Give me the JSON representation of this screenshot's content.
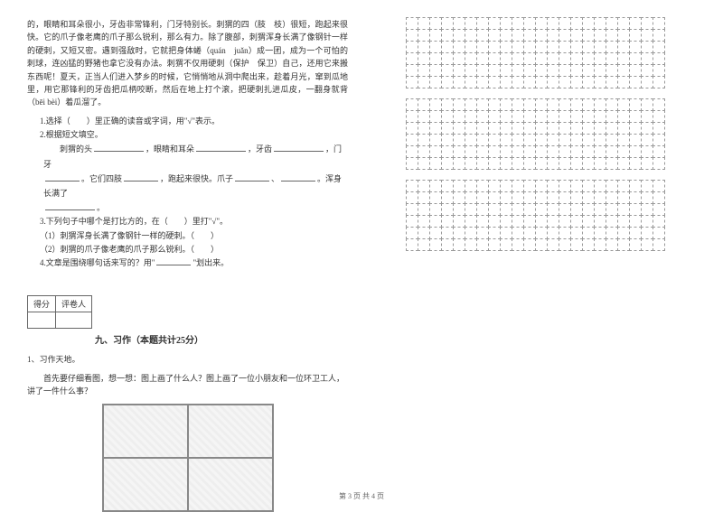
{
  "passage": "的，眼睛和耳朵很小，牙齿非常锋利，门牙特别长。刺猬的四（肢　枝）很短，跑起来很快。它的爪子像老鹰的爪子那么锐利，那么有力。除了腹部，刺猬浑身长满了像钢针一样的硬刺，又短又密。遇到强敌时，它就把身体蜷（quán　juǎn）成一团，成为一个可怕的刺球，连凶猛的野猪也拿它没有办法。刺猬不仅用硬刺（保护　保卫）自己，还用它来搬东西呢！夏天，正当人们进入梦乡的时候，它悄悄地从洞中爬出来，趁着月光，窜到瓜地里，用它那锋利的牙齿把瓜柄咬断，然后在地上打个滚，把硬刺扎进瓜皮，一翻身就背（bēi bèi）着瓜溜了。",
  "q1": "1.选择（　　）里正确的读音或字词，用\"√\"表示。",
  "q2": "2.根据短文填空。",
  "q2_parts": {
    "line1_pre": "　　刺猬的头",
    "p1": "，眼睛和耳朵",
    "p2": "，牙齿",
    "p3": "，门牙",
    "line2_pre": "",
    "p4": "。它们四肢",
    "p5": "，跑起来很快。爪子",
    "p6": "、",
    "p7": "。浑身长满了",
    "line3_end": "。"
  },
  "q3": "3.下列句子中哪个是打比方的，在（　　）里打\"√\"。",
  "q3_a": "（1）刺猬浑身长满了像钢针一样的硬刺。（　　）",
  "q3_b": "（2）刺猬的爪子像老鹰的爪子那么锐利。（　　）",
  "q4_pre": "4.文章是围绕哪句话来写的？用\"",
  "q4_post": "\"划出来。",
  "score_labels": {
    "a": "得分",
    "b": "评卷人"
  },
  "section_title": "九、习作（本题共计25分）",
  "writing_1": "1、习作天地。",
  "writing_2": "　　首先要仔细看图，想一想：图上画了什么人？图上画了一位小朋友和一位环卫工人，讲了一件什么事？",
  "grid": {
    "sections": 3,
    "rows_per_section": 6,
    "cols": 22
  },
  "page_footer": "第 3 页 共 4 页"
}
